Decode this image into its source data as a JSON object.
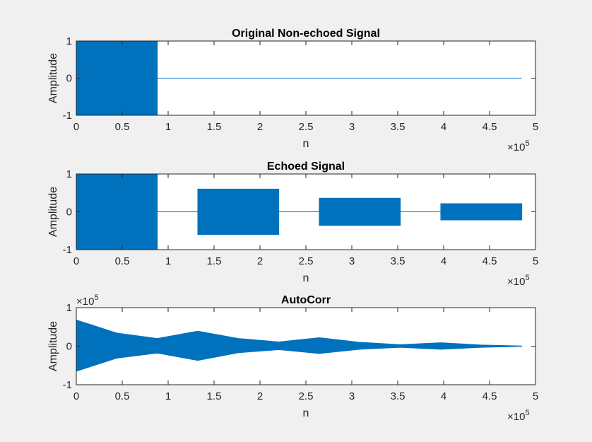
{
  "figure": {
    "background": "#f0f0f0",
    "axes_background": "#ffffff",
    "series_color": "#0072bd",
    "axis_color": "#262626"
  },
  "chart_data": [
    {
      "type": "line",
      "title": "Original Non-echoed Signal",
      "xlabel": "n",
      "ylabel": "Amplitude",
      "xlim": [
        0,
        500000
      ],
      "ylim": [
        -1,
        1
      ],
      "x_ticks": [
        "0",
        "0.5",
        "1",
        "1.5",
        "2",
        "2.5",
        "3",
        "3.5",
        "4",
        "4.5",
        "5"
      ],
      "y_ticks": [
        "-1",
        "0",
        "1"
      ],
      "x_exponent": {
        "base": "×10",
        "power": "5"
      },
      "y_exponent": null,
      "grid": false,
      "envelope": [
        {
          "x": 0,
          "y_min": -1,
          "y_max": 1
        },
        {
          "x": 88200,
          "y_min": -1,
          "y_max": 1
        },
        {
          "x": 88200,
          "y_min": 0,
          "y_max": 0
        },
        {
          "x": 485000,
          "y_min": 0,
          "y_max": 0
        }
      ]
    },
    {
      "type": "line",
      "title": "Echoed Signal",
      "xlabel": "n",
      "ylabel": "Amplitude",
      "xlim": [
        0,
        500000
      ],
      "ylim": [
        -1,
        1
      ],
      "x_ticks": [
        "0",
        "0.5",
        "1",
        "1.5",
        "2",
        "2.5",
        "3",
        "3.5",
        "4",
        "4.5",
        "5"
      ],
      "y_ticks": [
        "-1",
        "0",
        "1"
      ],
      "x_exponent": {
        "base": "×10",
        "power": "5"
      },
      "y_exponent": null,
      "grid": false,
      "envelope": [
        {
          "x": 0,
          "y_min": -1,
          "y_max": 1
        },
        {
          "x": 88200,
          "y_min": -1,
          "y_max": 1
        },
        {
          "x": 88200,
          "y_min": 0,
          "y_max": 0
        },
        {
          "x": 132300,
          "y_min": 0,
          "y_max": 0
        },
        {
          "x": 132300,
          "y_min": -0.6,
          "y_max": 0.6
        },
        {
          "x": 220500,
          "y_min": -0.6,
          "y_max": 0.6
        },
        {
          "x": 220500,
          "y_min": 0,
          "y_max": 0
        },
        {
          "x": 264600,
          "y_min": 0,
          "y_max": 0
        },
        {
          "x": 264600,
          "y_min": -0.36,
          "y_max": 0.36
        },
        {
          "x": 352800,
          "y_min": -0.36,
          "y_max": 0.36
        },
        {
          "x": 352800,
          "y_min": 0,
          "y_max": 0
        },
        {
          "x": 396900,
          "y_min": 0,
          "y_max": 0
        },
        {
          "x": 396900,
          "y_min": -0.216,
          "y_max": 0.216
        },
        {
          "x": 485100,
          "y_min": -0.216,
          "y_max": 0.216
        }
      ]
    },
    {
      "type": "line",
      "title": "AutoCorr",
      "xlabel": "n",
      "ylabel": "Amplitude",
      "xlim": [
        0,
        500000
      ],
      "ylim": [
        -100000,
        100000
      ],
      "x_ticks": [
        "0",
        "0.5",
        "1",
        "1.5",
        "2",
        "2.5",
        "3",
        "3.5",
        "4",
        "4.5",
        "5"
      ],
      "y_ticks": [
        "-1",
        "0",
        "1"
      ],
      "x_exponent": {
        "base": "×10",
        "power": "5"
      },
      "y_exponent": {
        "base": "×10",
        "power": "5"
      },
      "grid": false,
      "envelope": [
        {
          "x": 0,
          "y_min": -65000,
          "y_max": 68000
        },
        {
          "x": 44100,
          "y_min": -31000,
          "y_max": 34000
        },
        {
          "x": 88200,
          "y_min": -18000,
          "y_max": 20000
        },
        {
          "x": 132300,
          "y_min": -37000,
          "y_max": 39000
        },
        {
          "x": 176400,
          "y_min": -17000,
          "y_max": 20000
        },
        {
          "x": 220500,
          "y_min": -9000,
          "y_max": 11000
        },
        {
          "x": 264600,
          "y_min": -19000,
          "y_max": 22000
        },
        {
          "x": 308700,
          "y_min": -8000,
          "y_max": 10000
        },
        {
          "x": 352800,
          "y_min": -3000,
          "y_max": 4000
        },
        {
          "x": 396900,
          "y_min": -8000,
          "y_max": 9000
        },
        {
          "x": 441000,
          "y_min": -3000,
          "y_max": 3000
        },
        {
          "x": 485000,
          "y_min": -500,
          "y_max": 500
        }
      ]
    }
  ]
}
